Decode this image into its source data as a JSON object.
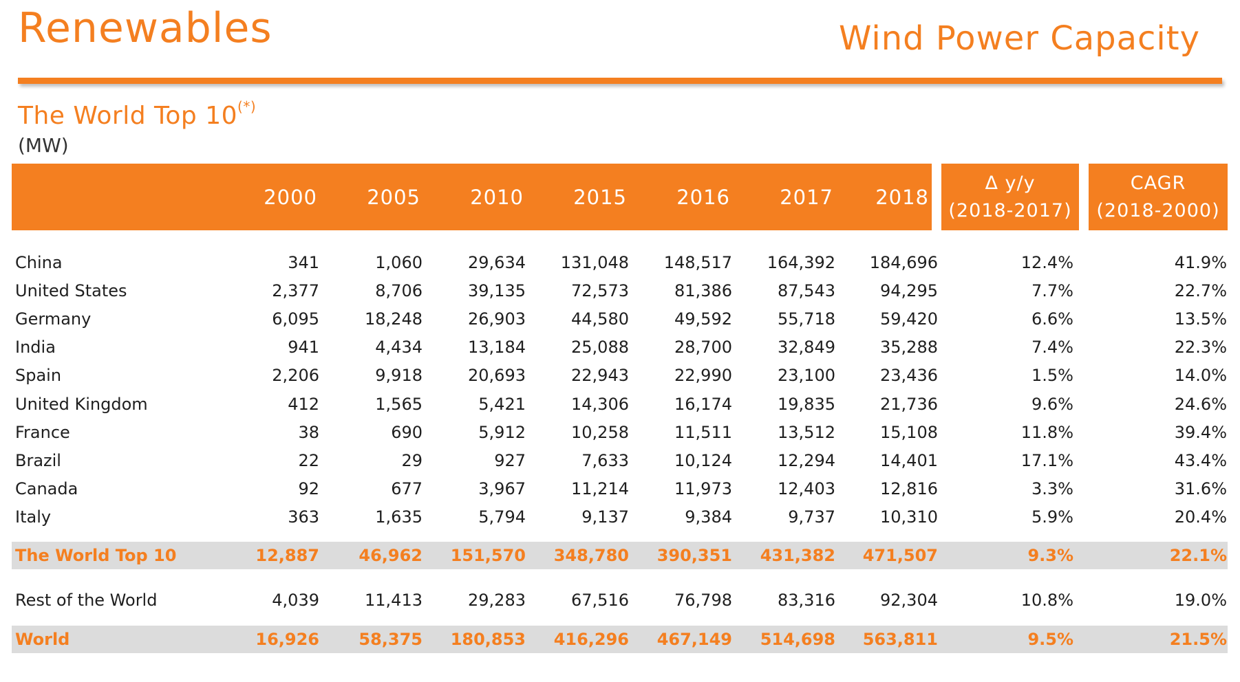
{
  "header": {
    "title_left": "Renewables",
    "title_right": "Wind Power Capacity",
    "subtitle": "The World Top 10",
    "subtitle_sup": "(*)",
    "unit": "(MW)"
  },
  "colors": {
    "accent": "#f47f20",
    "total_row_bg": "#dcdcdc",
    "header_text": "#ffffff"
  },
  "table": {
    "year_columns": [
      "2000",
      "2005",
      "2010",
      "2015",
      "2016",
      "2017",
      "2018"
    ],
    "delta_header": {
      "line1": "Δ y/y",
      "line2": "(2018-2017)"
    },
    "cagr_header": {
      "line1": "CAGR",
      "line2": "(2018-2000)"
    },
    "rows": [
      {
        "name": "China",
        "values": [
          "341",
          "1,060",
          "29,634",
          "131,048",
          "148,517",
          "164,392",
          "184,696"
        ],
        "delta": "12.4%",
        "cagr": "41.9%"
      },
      {
        "name": "United States",
        "values": [
          "2,377",
          "8,706",
          "39,135",
          "72,573",
          "81,386",
          "87,543",
          "94,295"
        ],
        "delta": "7.7%",
        "cagr": "22.7%"
      },
      {
        "name": "Germany",
        "values": [
          "6,095",
          "18,248",
          "26,903",
          "44,580",
          "49,592",
          "55,718",
          "59,420"
        ],
        "delta": "6.6%",
        "cagr": "13.5%"
      },
      {
        "name": "India",
        "values": [
          "941",
          "4,434",
          "13,184",
          "25,088",
          "28,700",
          "32,849",
          "35,288"
        ],
        "delta": "7.4%",
        "cagr": "22.3%"
      },
      {
        "name": "Spain",
        "values": [
          "2,206",
          "9,918",
          "20,693",
          "22,943",
          "22,990",
          "23,100",
          "23,436"
        ],
        "delta": "1.5%",
        "cagr": "14.0%"
      },
      {
        "name": "United Kingdom",
        "values": [
          "412",
          "1,565",
          "5,421",
          "14,306",
          "16,174",
          "19,835",
          "21,736"
        ],
        "delta": "9.6%",
        "cagr": "24.6%"
      },
      {
        "name": "France",
        "values": [
          "38",
          "690",
          "5,912",
          "10,258",
          "11,511",
          "13,512",
          "15,108"
        ],
        "delta": "11.8%",
        "cagr": "39.4%"
      },
      {
        "name": "Brazil",
        "values": [
          "22",
          "29",
          "927",
          "7,633",
          "10,124",
          "12,294",
          "14,401"
        ],
        "delta": "17.1%",
        "cagr": "43.4%"
      },
      {
        "name": "Canada",
        "values": [
          "92",
          "677",
          "3,967",
          "11,214",
          "11,973",
          "12,403",
          "12,816"
        ],
        "delta": "3.3%",
        "cagr": "31.6%"
      },
      {
        "name": "Italy",
        "values": [
          "363",
          "1,635",
          "5,794",
          "9,137",
          "9,384",
          "9,737",
          "10,310"
        ],
        "delta": "5.9%",
        "cagr": "20.4%"
      }
    ],
    "top10_total": {
      "name": "The World Top 10",
      "values": [
        "12,887",
        "46,962",
        "151,570",
        "348,780",
        "390,351",
        "431,382",
        "471,507"
      ],
      "delta": "9.3%",
      "cagr": "22.1%"
    },
    "rest_of_world": {
      "name": "Rest of the World",
      "values": [
        "4,039",
        "11,413",
        "29,283",
        "67,516",
        "76,798",
        "83,316",
        "92,304"
      ],
      "delta": "10.8%",
      "cagr": "19.0%"
    },
    "world_total": {
      "name": "World",
      "values": [
        "16,926",
        "58,375",
        "180,853",
        "416,296",
        "467,149",
        "514,698",
        "563,811"
      ],
      "delta": "9.5%",
      "cagr": "21.5%"
    }
  }
}
